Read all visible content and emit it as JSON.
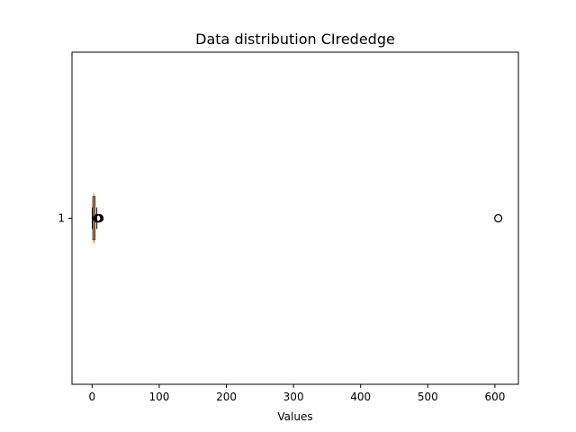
{
  "chart_data": {
    "type": "boxplot",
    "orientation": "horizontal",
    "title": "Data distribution CIrededge",
    "xlabel": "Values",
    "ylabel": "",
    "xlim": [
      -30,
      635
    ],
    "x_ticks": [
      0,
      100,
      200,
      300,
      400,
      500,
      600
    ],
    "x_tick_labels": [
      "0",
      "100",
      "200",
      "300",
      "400",
      "500",
      "600"
    ],
    "categories": [
      "1"
    ],
    "boxes": [
      {
        "label": "1",
        "whisker_low": 0.3,
        "q1": 1.2,
        "median": 2.4,
        "q3": 4.0,
        "whisker_high": 7.0,
        "outliers": [
          7.5,
          8.0,
          8.5,
          9.0,
          9.5,
          10.0,
          10.5,
          11.0,
          605.0
        ]
      }
    ],
    "grid": false,
    "colors": {
      "box": "#000000",
      "median": "#ff7f0e",
      "outlier": "#000000"
    }
  }
}
